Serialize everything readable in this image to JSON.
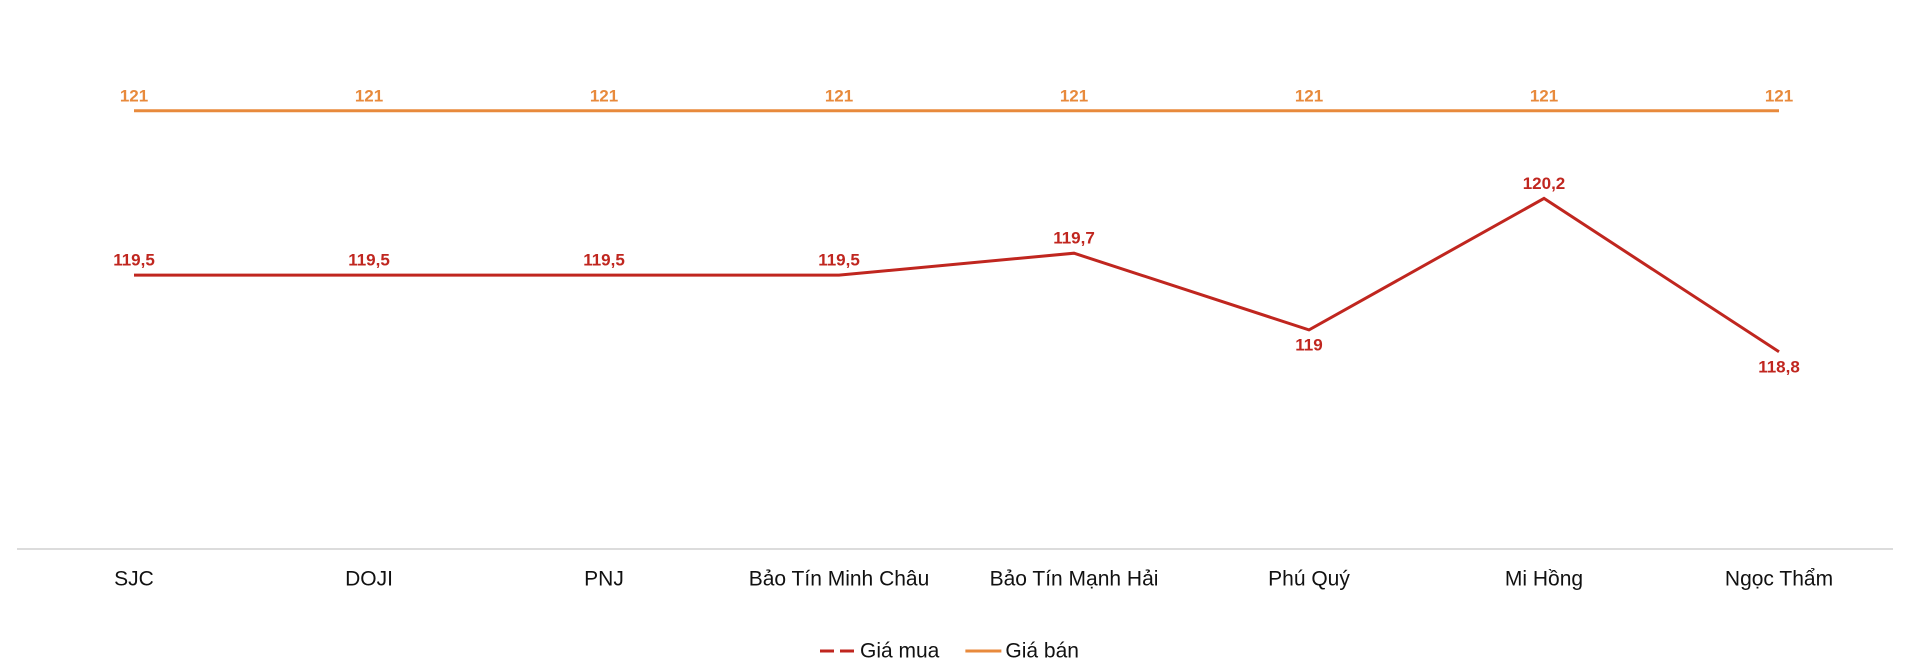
{
  "chart_data": {
    "type": "line",
    "categories": [
      "SJC",
      "DOJI",
      "PNJ",
      "Bảo Tín Minh Châu",
      "Bảo Tín Mạnh Hải",
      "Phú Quý",
      "Mi Hồng",
      "Ngọc Thẩm"
    ],
    "series": [
      {
        "name": "Giá mua",
        "color": "#c0261f",
        "dash": true,
        "values": [
          119.5,
          119.5,
          119.5,
          119.5,
          119.7,
          119,
          120.2,
          118.8
        ],
        "value_labels": [
          "119,5",
          "119,5",
          "119,5",
          "119,5",
          "119,7",
          "119",
          "120,2",
          "118,8"
        ]
      },
      {
        "name": "Giá bán",
        "color": "#e88a3c",
        "values": [
          121,
          121,
          121,
          121,
          121,
          121,
          121,
          121
        ],
        "value_labels": [
          "121",
          "121",
          "121",
          "121",
          "121",
          "121",
          "121",
          "121"
        ]
      }
    ],
    "ylim": [
      117,
      121.5
    ],
    "legend": "bottom"
  }
}
